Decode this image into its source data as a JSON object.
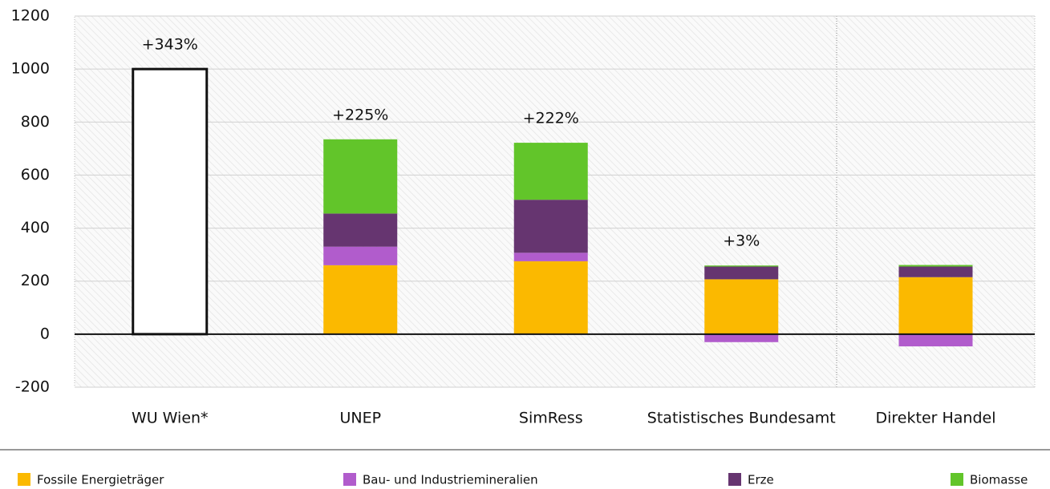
{
  "chart_data": {
    "type": "stacked_bar",
    "categories": [
      "WU Wien*",
      "UNEP",
      "SimRess",
      "Statistisches Bundesamt",
      "Direkter Handel"
    ],
    "series": [
      {
        "color": "#ffffff",
        "values": [
          1000,
          null,
          null,
          null,
          null
        ]
      },
      {
        "name": "Fossile Energieträger",
        "color": "#fbb900",
        "values": [
          null,
          260,
          275,
          207,
          215
        ]
      },
      {
        "name": "Bau- und Industriemineralien",
        "color": "#b15ccc",
        "values": [
          null,
          70,
          32,
          -30,
          -46
        ]
      },
      {
        "name": "Erze",
        "color": "#663570",
        "values": [
          null,
          125,
          200,
          48,
          40
        ]
      },
      {
        "name": "Biomasse",
        "color": "#62c52a",
        "values": [
          null,
          280,
          215,
          4,
          6
        ]
      }
    ],
    "annotations": [
      "+343%",
      "+225%",
      "+222%",
      "+3%",
      null
    ],
    "ylim": [
      -200,
      1200
    ],
    "yticks": [
      -200,
      0,
      200,
      400,
      600,
      800,
      1000,
      1200
    ],
    "grid": true
  }
}
